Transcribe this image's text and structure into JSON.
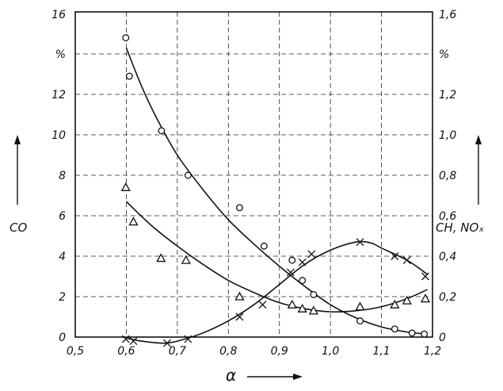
{
  "chart_data": {
    "type": "scatter",
    "title": "",
    "xlabel": "α",
    "ylabel_left": "CO",
    "ylabel_right": "CH, NOₓ",
    "left_unit": "%",
    "right_unit": "%",
    "xlim": [
      0.5,
      1.2
    ],
    "ylim_left": [
      0,
      16
    ],
    "ylim_right": [
      0,
      1.6
    ],
    "x_ticks": [
      "0,5",
      "0,6",
      "0,7",
      "0,8",
      "0,9",
      "1,0",
      "1,1",
      "1,2"
    ],
    "y_ticks_left": [
      "0",
      "2",
      "4",
      "6",
      "8",
      "10",
      "12",
      "16"
    ],
    "y_ticks_right": [
      "0",
      "0,2",
      "0,4",
      "0,6",
      "0,8",
      "1,0",
      "1,2",
      "1,6"
    ],
    "grid": true,
    "series": [
      {
        "marker": "circle",
        "axis": "left",
        "points": [
          [
            0.599,
            14.8
          ],
          [
            0.606,
            12.9
          ],
          [
            0.669,
            10.2
          ],
          [
            0.721,
            8.0
          ],
          [
            0.822,
            6.4
          ],
          [
            0.87,
            4.5
          ],
          [
            0.925,
            3.8
          ],
          [
            0.945,
            2.8
          ],
          [
            0.967,
            2.1
          ],
          [
            1.058,
            0.8
          ],
          [
            1.126,
            0.4
          ],
          [
            1.16,
            0.2
          ],
          [
            1.184,
            0.15
          ]
        ],
        "curve": [
          [
            0.6,
            14.3
          ],
          [
            0.63,
            12.4
          ],
          [
            0.66,
            10.8
          ],
          [
            0.7,
            9.0
          ],
          [
            0.75,
            7.3
          ],
          [
            0.8,
            5.8
          ],
          [
            0.85,
            4.6
          ],
          [
            0.9,
            3.5
          ],
          [
            0.95,
            2.5
          ],
          [
            1.0,
            1.6
          ],
          [
            1.05,
            0.95
          ],
          [
            1.1,
            0.5
          ],
          [
            1.15,
            0.25
          ],
          [
            1.19,
            0.15
          ]
        ]
      },
      {
        "marker": "triangle",
        "axis": "left",
        "points": [
          [
            0.599,
            7.4
          ],
          [
            0.614,
            5.7
          ],
          [
            0.668,
            3.9
          ],
          [
            0.717,
            3.8
          ],
          [
            0.822,
            2.0
          ],
          [
            0.925,
            1.6
          ],
          [
            0.945,
            1.4
          ],
          [
            0.967,
            1.3
          ],
          [
            1.058,
            1.5
          ],
          [
            1.126,
            1.6
          ],
          [
            1.15,
            1.8
          ],
          [
            1.186,
            1.9
          ]
        ],
        "curve": [
          [
            0.6,
            6.7
          ],
          [
            0.65,
            5.5
          ],
          [
            0.7,
            4.5
          ],
          [
            0.75,
            3.6
          ],
          [
            0.8,
            2.8
          ],
          [
            0.85,
            2.2
          ],
          [
            0.9,
            1.7
          ],
          [
            0.95,
            1.4
          ],
          [
            1.0,
            1.25
          ],
          [
            1.05,
            1.3
          ],
          [
            1.1,
            1.5
          ],
          [
            1.15,
            1.9
          ],
          [
            1.19,
            2.35
          ]
        ]
      },
      {
        "marker": "cross",
        "axis": "left",
        "points": [
          [
            0.599,
            -0.1
          ],
          [
            0.614,
            -0.2
          ],
          [
            0.68,
            -0.3
          ],
          [
            0.721,
            -0.1
          ],
          [
            0.822,
            1.0
          ],
          [
            0.867,
            1.6
          ],
          [
            0.922,
            3.2
          ],
          [
            0.945,
            3.7
          ],
          [
            0.963,
            4.1
          ],
          [
            1.058,
            4.7
          ],
          [
            1.126,
            4.0
          ],
          [
            1.15,
            3.8
          ],
          [
            1.186,
            3.0
          ]
        ],
        "curve": [
          [
            0.6,
            -0.05
          ],
          [
            0.63,
            -0.2
          ],
          [
            0.67,
            -0.3
          ],
          [
            0.7,
            -0.2
          ],
          [
            0.75,
            0.2
          ],
          [
            0.8,
            0.8
          ],
          [
            0.85,
            1.6
          ],
          [
            0.9,
            2.6
          ],
          [
            0.95,
            3.6
          ],
          [
            1.0,
            4.3
          ],
          [
            1.05,
            4.7
          ],
          [
            1.08,
            4.65
          ],
          [
            1.1,
            4.4
          ],
          [
            1.15,
            3.8
          ],
          [
            1.19,
            3.1
          ]
        ]
      }
    ]
  }
}
